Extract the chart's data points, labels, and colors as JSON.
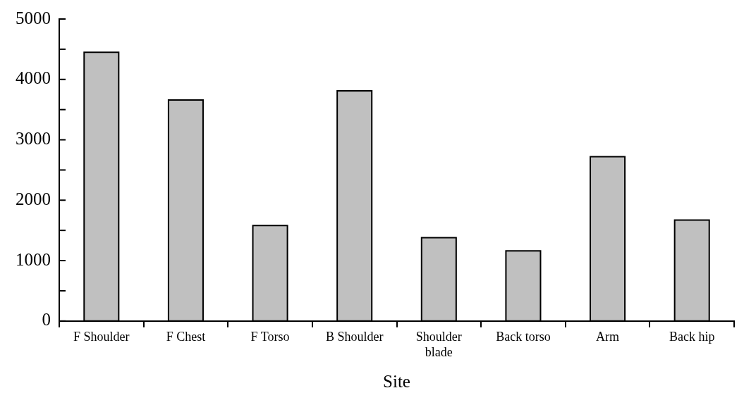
{
  "chart_data": {
    "type": "bar",
    "xlabel": "Site",
    "categories": [
      "F Shoulder",
      "F Chest",
      "F Torso",
      "B Shoulder",
      "Shoulder blade",
      "Back torso",
      "Arm",
      "Back hip"
    ],
    "values": [
      4450,
      3660,
      1580,
      3810,
      1380,
      1160,
      2720,
      1670
    ],
    "color": "#c0c0c0",
    "ylim": [
      0,
      5000
    ],
    "yticks": [
      0,
      {
        "value": 500,
        "label": null
      },
      1000,
      {
        "value": 1500,
        "label": null
      },
      2000,
      {
        "value": 2500,
        "label": null
      },
      3000,
      {
        "value": 3500,
        "label": null
      },
      4000,
      {
        "value": 4500,
        "label": null
      },
      5000
    ],
    "grid": false,
    "legend": false
  }
}
